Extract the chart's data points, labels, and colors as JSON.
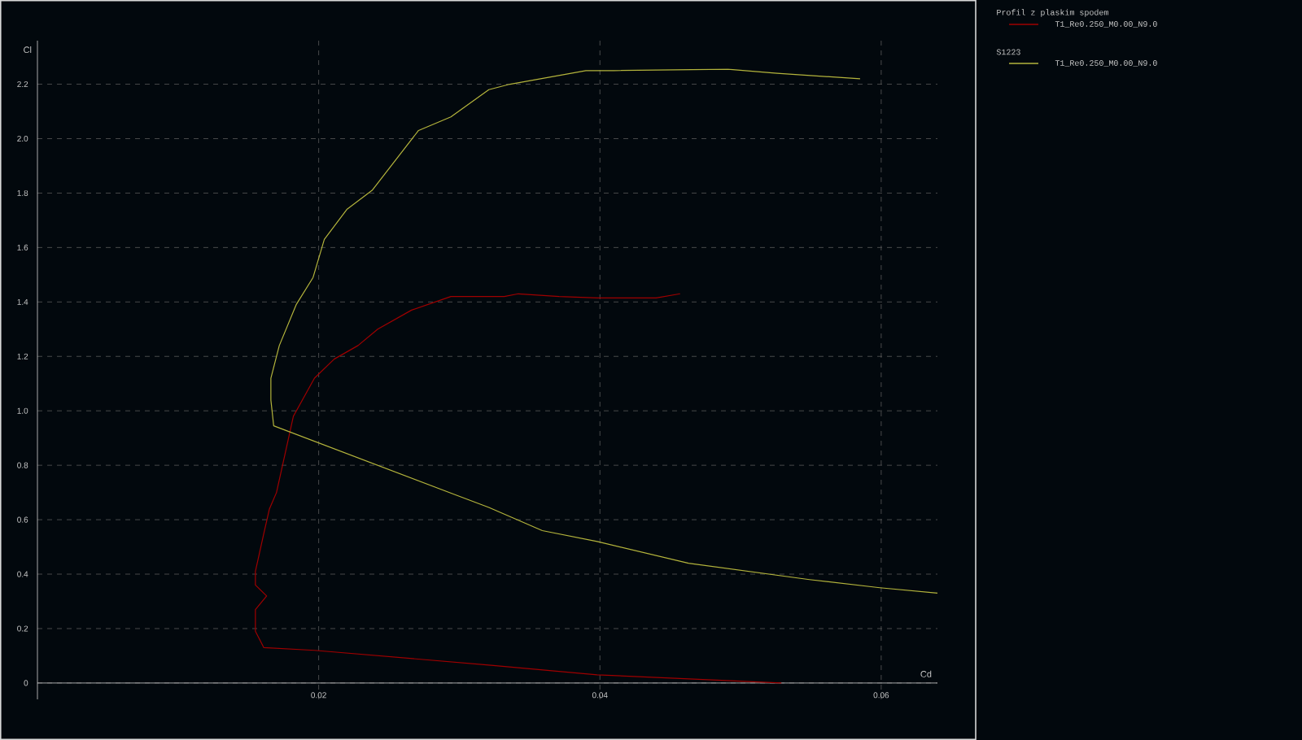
{
  "chart_data": {
    "type": "line",
    "xlabel": "Cd",
    "ylabel": "Cl",
    "xlim": [
      0,
      0.064
    ],
    "ylim": [
      -0.06,
      2.36
    ],
    "xticks": [
      0.02,
      0.04,
      0.06
    ],
    "yticks": [
      0,
      0.2,
      0.4,
      0.6,
      0.8,
      {
        "value": 1.0,
        "label": "1.0"
      },
      1.2,
      1.4,
      1.6,
      1.8,
      {
        "value": 2.0,
        "label": "2.0"
      },
      2.2
    ],
    "grid": true,
    "legend": "right",
    "annotations": [
      "Profil z plaskim spodem",
      "S1223"
    ],
    "series": [
      {
        "name": "T1_Re0.250_M0.00_N9.0",
        "color": "#a00000",
        "x": [
          0.0529,
          0.0398,
          0.0321,
          0.0197,
          0.0161,
          0.0155,
          0.0155,
          0.0163,
          0.0155,
          0.0155,
          0.0161,
          0.0165,
          0.017,
          0.0176,
          0.0182,
          0.0197,
          0.0211,
          0.0228,
          0.0242,
          0.0266,
          0.0294,
          0.0332,
          0.0342,
          0.0371,
          0.0398,
          0.044,
          0.0457
        ],
        "values": [
          0,
          0.03,
          0.066,
          0.12,
          0.13,
          0.19,
          0.27,
          0.32,
          0.36,
          0.41,
          0.55,
          0.64,
          0.7,
          0.84,
          0.98,
          1.12,
          1.19,
          1.24,
          1.3,
          1.37,
          1.42,
          1.42,
          1.43,
          1.42,
          1.415,
          1.415,
          1.43
        ]
      },
      {
        "name": "T1_Re0.250_M0.00_N9.0",
        "color": "#b4b43c",
        "x": [
          0.064,
          0.0599,
          0.0549,
          0.0463,
          0.0398,
          0.0359,
          0.0321,
          0.0298,
          0.0168,
          0.0166,
          0.0166,
          0.0172,
          0.0184,
          0.0196,
          0.0204,
          0.022,
          0.0238,
          0.0271,
          0.0294,
          0.0321,
          0.0336,
          0.039,
          0.041,
          0.0491,
          0.0526,
          0.0585
        ],
        "values": [
          0.33,
          0.35,
          0.38,
          0.44,
          0.52,
          0.56,
          0.645,
          0.69,
          0.945,
          1.04,
          1.12,
          1.24,
          1.39,
          1.49,
          1.63,
          1.74,
          1.81,
          2.03,
          2.08,
          2.18,
          2.2,
          2.25,
          2.25,
          2.255,
          2.24,
          2.22
        ]
      }
    ]
  }
}
